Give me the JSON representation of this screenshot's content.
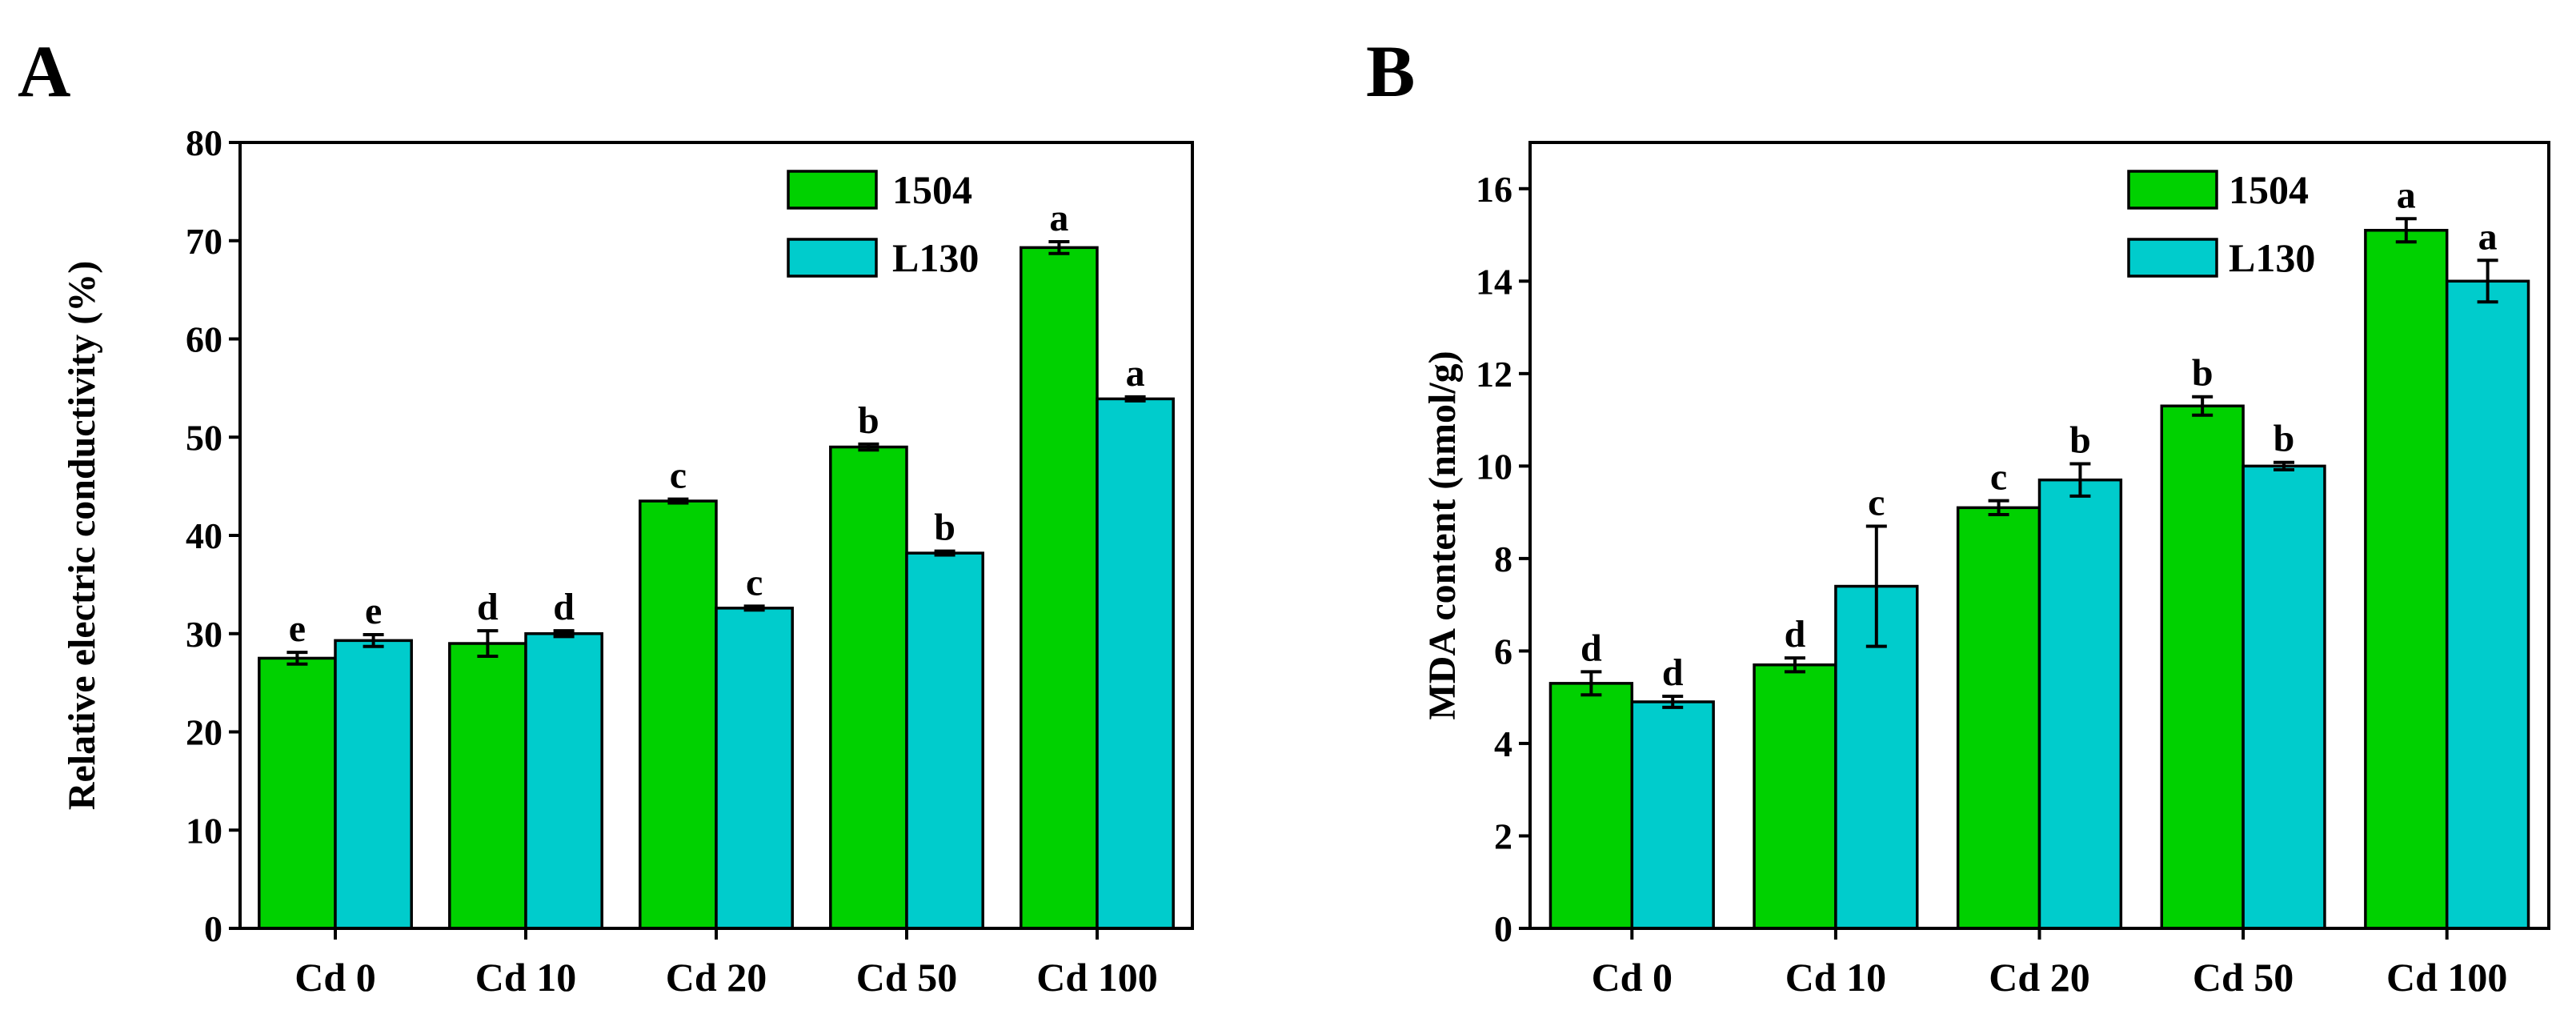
{
  "chart_data": [
    {
      "type": "bar",
      "panel_label": "A",
      "title": "",
      "xlabel": "",
      "ylabel": "Relative electric conductivity (%)",
      "ylim": [
        0,
        80
      ],
      "yticks": [
        0,
        10,
        20,
        30,
        40,
        50,
        60,
        70,
        80
      ],
      "categories": [
        "Cd 0",
        "Cd 10",
        "Cd 20",
        "Cd 50",
        "Cd 100"
      ],
      "legend_position": "top-right",
      "series": [
        {
          "name": "1504",
          "color": "#00D100",
          "values": [
            27.5,
            29.0,
            43.5,
            49.0,
            69.3
          ],
          "errors": [
            0.6,
            1.3,
            0.2,
            0.3,
            0.6
          ],
          "significance": [
            "e",
            "d",
            "c",
            "b",
            "a"
          ]
        },
        {
          "name": "L130",
          "color": "#00CCCC",
          "values": [
            29.3,
            30.0,
            32.6,
            38.2,
            53.9
          ],
          "errors": [
            0.6,
            0.3,
            0.2,
            0.2,
            0.2
          ],
          "significance": [
            "e",
            "d",
            "c",
            "b",
            "a"
          ]
        }
      ]
    },
    {
      "type": "bar",
      "panel_label": "B",
      "title": "",
      "xlabel": "",
      "ylabel": "MDA content (nmol/g)",
      "ylim": [
        0,
        17
      ],
      "yticks": [
        0,
        2,
        4,
        6,
        8,
        10,
        12,
        14,
        16
      ],
      "categories": [
        "Cd 0",
        "Cd 10",
        "Cd 20",
        "Cd 50",
        "Cd 100"
      ],
      "legend_position": "top-right",
      "series": [
        {
          "name": "1504",
          "color": "#00D100",
          "values": [
            5.3,
            5.7,
            9.1,
            11.3,
            15.1
          ],
          "errors": [
            0.25,
            0.15,
            0.15,
            0.2,
            0.25
          ],
          "significance": [
            "d",
            "d",
            "c",
            "b",
            "a"
          ]
        },
        {
          "name": "L130",
          "color": "#00CCCC",
          "values": [
            4.9,
            7.4,
            9.7,
            10.0,
            14.0
          ],
          "errors": [
            0.12,
            1.3,
            0.35,
            0.08,
            0.45
          ],
          "significance": [
            "d",
            "c",
            "b",
            "b",
            "a"
          ]
        }
      ]
    }
  ]
}
